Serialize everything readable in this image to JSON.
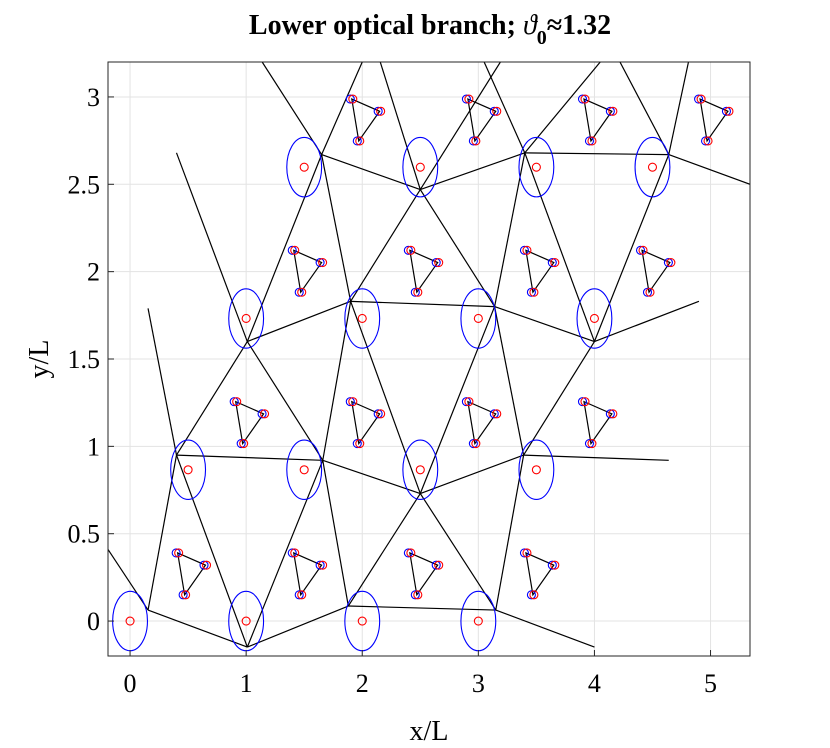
{
  "chart_data": {
    "type": "lattice",
    "title_prefix": "Lower optical branch; ",
    "title_symbol": "ϑ",
    "title_sub": "0",
    "title_suffix": "≈1.32",
    "xlabel": "x/L",
    "ylabel": "y/L",
    "xlim": [
      -0.19,
      5.34
    ],
    "ylim": [
      -0.2,
      3.2
    ],
    "xticks": [
      0,
      1,
      2,
      3,
      4,
      5
    ],
    "yticks": [
      0,
      0.5,
      1,
      1.5,
      2,
      2.5,
      3
    ],
    "grid": true,
    "sites": {
      "color": "#ff0000",
      "ellipse_color": "#0000ff",
      "ellipse_rx": 0.15,
      "ellipse_ry": 0.17,
      "x": [
        0,
        1,
        2,
        3,
        0.5,
        1.5,
        2.5,
        3.5,
        1,
        2,
        3,
        4,
        1.5,
        2.5,
        3.5,
        4.5
      ],
      "y": [
        0,
        0,
        0,
        0,
        0.866,
        0.866,
        0.866,
        0.866,
        1.732,
        1.732,
        1.732,
        1.732,
        2.598,
        2.598,
        2.598,
        2.598
      ]
    },
    "molecules": {
      "color": "#ff0000",
      "displaced_color": "#0000ff",
      "x": [
        0.41,
        0.65,
        0.47,
        1.41,
        1.65,
        1.47,
        2.41,
        2.65,
        2.47,
        3.41,
        3.65,
        3.47,
        0.91,
        1.15,
        0.97,
        1.91,
        2.15,
        1.97,
        2.91,
        3.15,
        2.97,
        3.91,
        4.15,
        3.97,
        1.41,
        1.65,
        1.47,
        2.41,
        2.65,
        2.47,
        3.41,
        3.65,
        3.47,
        4.41,
        4.65,
        4.47,
        1.91,
        2.15,
        1.97,
        2.91,
        3.15,
        2.97,
        3.91,
        4.15,
        3.97,
        4.91,
        5.15,
        4.97
      ],
      "y": [
        0.39,
        0.32,
        0.15,
        0.39,
        0.32,
        0.15,
        0.39,
        0.32,
        0.15,
        0.39,
        0.32,
        0.15,
        1.256,
        1.186,
        1.016,
        1.256,
        1.186,
        1.016,
        1.256,
        1.186,
        1.016,
        1.256,
        1.186,
        1.016,
        2.122,
        2.052,
        1.882,
        2.122,
        2.052,
        1.882,
        2.122,
        2.052,
        1.882,
        2.122,
        2.052,
        1.882,
        2.988,
        2.918,
        2.748,
        2.988,
        2.918,
        2.748,
        2.988,
        2.918,
        2.748,
        2.988,
        2.918,
        2.748
      ]
    },
    "segments_color": "#000000",
    "segments": [
      [
        -0.19,
        0.41,
        0.155,
        0.063
      ],
      [
        0.155,
        0.063,
        1.01,
        -0.149
      ],
      [
        1.01,
        -0.149,
        1.88,
        0.086
      ],
      [
        1.88,
        0.086,
        3.15,
        0.063
      ],
      [
        3.15,
        0.063,
        4.0,
        -0.149
      ],
      [
        0.155,
        0.063,
        0.4,
        0.95
      ],
      [
        0.4,
        0.95,
        1.01,
        -0.149
      ],
      [
        1.01,
        -0.149,
        1.66,
        0.92
      ],
      [
        1.66,
        0.92,
        1.88,
        0.086
      ],
      [
        1.88,
        0.086,
        2.5,
        0.73
      ],
      [
        2.5,
        0.73,
        3.15,
        0.063
      ],
      [
        3.15,
        0.063,
        3.39,
        0.95
      ],
      [
        0.4,
        0.95,
        1.66,
        0.92
      ],
      [
        1.66,
        0.92,
        2.5,
        0.73
      ],
      [
        2.5,
        0.73,
        3.39,
        0.95
      ],
      [
        3.39,
        0.95,
        4.64,
        0.92
      ],
      [
        0.4,
        0.95,
        1.01,
        1.6
      ],
      [
        1.01,
        1.6,
        1.66,
        0.92
      ],
      [
        1.66,
        0.92,
        1.9,
        1.83
      ],
      [
        1.9,
        1.83,
        2.5,
        0.73
      ],
      [
        2.5,
        0.73,
        3.14,
        1.8
      ],
      [
        3.14,
        1.8,
        3.39,
        0.95
      ],
      [
        3.39,
        0.95,
        4.0,
        1.6
      ],
      [
        1.01,
        1.6,
        1.9,
        1.83
      ],
      [
        1.9,
        1.83,
        3.14,
        1.8
      ],
      [
        3.14,
        1.8,
        4.0,
        1.6
      ],
      [
        4.0,
        1.6,
        4.9,
        1.83
      ],
      [
        1.01,
        1.6,
        1.65,
        2.67
      ],
      [
        1.65,
        2.67,
        1.9,
        1.83
      ],
      [
        1.9,
        1.83,
        2.5,
        2.47
      ],
      [
        2.5,
        2.47,
        3.14,
        1.8
      ],
      [
        3.14,
        1.8,
        3.4,
        2.68
      ],
      [
        3.4,
        2.68,
        4.0,
        1.6
      ],
      [
        4.0,
        1.6,
        4.64,
        2.67
      ],
      [
        1.65,
        2.67,
        2.5,
        2.47
      ],
      [
        2.5,
        2.47,
        3.4,
        2.68
      ],
      [
        3.4,
        2.68,
        4.64,
        2.67
      ],
      [
        4.64,
        2.67,
        5.34,
        2.5
      ],
      [
        0.155,
        1.79,
        0.4,
        0.95
      ],
      [
        0.4,
        2.68,
        1.01,
        1.6
      ],
      [
        1.65,
        2.67,
        1.138,
        3.2
      ],
      [
        1.65,
        2.67,
        2.0,
        3.2
      ],
      [
        2.5,
        2.47,
        2.155,
        3.2
      ],
      [
        2.5,
        2.47,
        3.19,
        3.2
      ],
      [
        3.4,
        2.68,
        3.05,
        3.2
      ],
      [
        3.4,
        2.68,
        4.05,
        3.2
      ],
      [
        4.64,
        2.67,
        4.22,
        3.2
      ],
      [
        4.64,
        2.67,
        4.81,
        3.2
      ]
    ]
  }
}
